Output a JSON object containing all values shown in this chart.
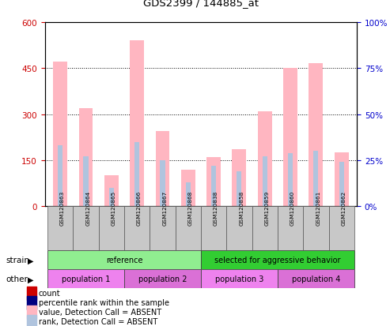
{
  "title": "GDS2399 / 144885_at",
  "samples": [
    "GSM120863",
    "GSM120864",
    "GSM120865",
    "GSM120866",
    "GSM120867",
    "GSM120868",
    "GSM120838",
    "GSM120858",
    "GSM120859",
    "GSM120860",
    "GSM120861",
    "GSM120862"
  ],
  "value_absent": [
    470,
    320,
    100,
    540,
    245,
    120,
    160,
    185,
    310,
    450,
    465,
    175
  ],
  "rank_absent_pct": [
    33,
    27,
    10,
    35,
    25,
    13,
    22,
    19,
    27,
    29,
    30,
    24
  ],
  "strain_groups": [
    {
      "label": "reference",
      "start": 0,
      "end": 6,
      "color": "#90EE90"
    },
    {
      "label": "selected for aggressive behavior",
      "start": 6,
      "end": 12,
      "color": "#32CD32"
    }
  ],
  "other_groups": [
    {
      "label": "population 1",
      "start": 0,
      "end": 3,
      "color": "#EE82EE"
    },
    {
      "label": "population 2",
      "start": 3,
      "end": 6,
      "color": "#DA70D6"
    },
    {
      "label": "population 3",
      "start": 6,
      "end": 9,
      "color": "#EE82EE"
    },
    {
      "label": "population 4",
      "start": 9,
      "end": 12,
      "color": "#DA70D6"
    }
  ],
  "ylim_left": [
    0,
    600
  ],
  "ylim_right": [
    0,
    100
  ],
  "yticks_left": [
    0,
    150,
    300,
    450,
    600
  ],
  "yticks_right": [
    0,
    25,
    50,
    75,
    100
  ],
  "color_value_absent": "#FFB6C1",
  "color_rank_absent": "#B0C4DE",
  "color_count": "#CC0000",
  "color_percentile": "#000080",
  "legend_items": [
    {
      "label": "count",
      "color": "#CC0000"
    },
    {
      "label": "percentile rank within the sample",
      "color": "#000080"
    },
    {
      "label": "value, Detection Call = ABSENT",
      "color": "#FFB6C1"
    },
    {
      "label": "rank, Detection Call = ABSENT",
      "color": "#B0C4DE"
    }
  ],
  "strain_label": "strain",
  "other_label": "other",
  "left_axis_color": "#CC0000",
  "right_axis_color": "#0000CC",
  "n_samples": 12
}
